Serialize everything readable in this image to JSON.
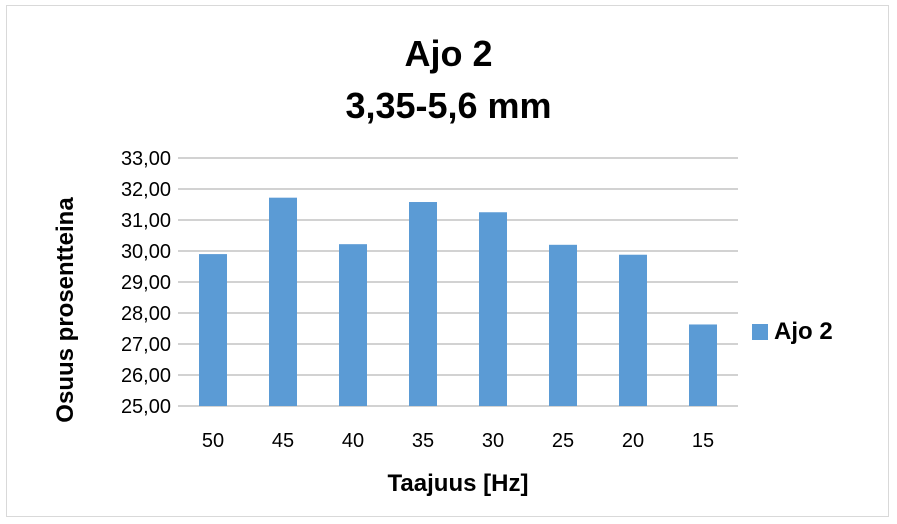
{
  "chart_data": {
    "type": "bar",
    "title": "Ajo 2",
    "subtitle": "3,35-5,6 mm",
    "xlabel": "Taajuus [Hz]",
    "ylabel": "Osuus prosentteina",
    "categories": [
      "50",
      "45",
      "40",
      "35",
      "30",
      "25",
      "20",
      "15"
    ],
    "series": [
      {
        "name": "Ajo 2",
        "values": [
          29.9,
          31.72,
          30.22,
          31.58,
          31.25,
          30.2,
          29.88,
          27.63
        ]
      }
    ],
    "ylim": [
      25,
      33
    ],
    "yticks": [
      "25,00",
      "26,00",
      "27,00",
      "28,00",
      "29,00",
      "30,00",
      "31,00",
      "32,00",
      "33,00"
    ],
    "grid": true,
    "legend_position": "right",
    "bar_color": "#5b9bd5",
    "grid_color": "#a6a6a6"
  }
}
